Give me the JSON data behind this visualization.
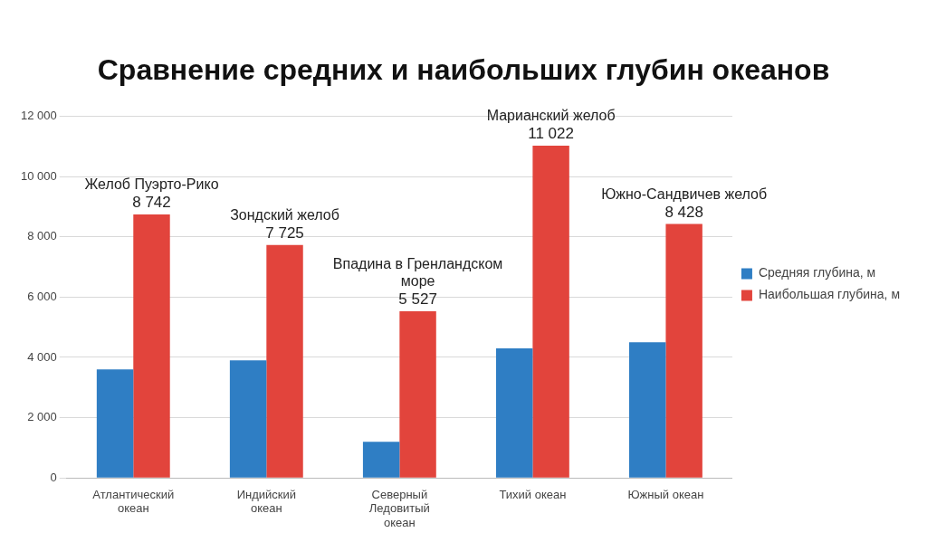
{
  "chart_data": {
    "type": "bar",
    "title": "Сравнение средних и наибольших глубин океанов",
    "categories": [
      "Атлантический океан",
      "Индийский океан",
      "Северный Ледовитый океан",
      "Тихий океан",
      "Южный океан"
    ],
    "series": [
      {
        "name": "Средняя глубина, м",
        "color": "#2f7ec4",
        "values": [
          3600,
          3900,
          1200,
          4300,
          4500
        ]
      },
      {
        "name": "Наибольшая глубина, м",
        "color": "#e2443c",
        "values": [
          8742,
          7725,
          5527,
          11022,
          8428
        ],
        "value_labels": [
          "8 742",
          "7 725",
          "5 527",
          "11 022",
          "8 428"
        ]
      }
    ],
    "ylim": [
      0,
      12000
    ],
    "yticks": [
      {
        "value": 0,
        "label": "0"
      },
      {
        "value": 2000,
        "label": "2 000"
      },
      {
        "value": 4000,
        "label": "4 000"
      },
      {
        "value": 6000,
        "label": "6 000"
      },
      {
        "value": 8000,
        "label": "8 000"
      },
      {
        "value": 10000,
        "label": "10 000"
      },
      {
        "value": 12000,
        "label": "12 000"
      }
    ],
    "grid": "y",
    "legend": "right",
    "annotations": [
      {
        "text": "Желоб Пуэрто-Рико",
        "x": "Атлантический океан",
        "y": 8742
      },
      {
        "text": "Зондский желоб",
        "x": "Индийский океан",
        "y": 7725
      },
      {
        "text": "Впадина в Гренландском море",
        "x": "Северный Ледовитый океан",
        "y": 5527
      },
      {
        "text": "Марианский желоб",
        "x": "Тихий океан",
        "y": 11022
      },
      {
        "text": "Южно-Сандвичев желоб",
        "x": "Южный океан",
        "y": 8428
      }
    ]
  }
}
